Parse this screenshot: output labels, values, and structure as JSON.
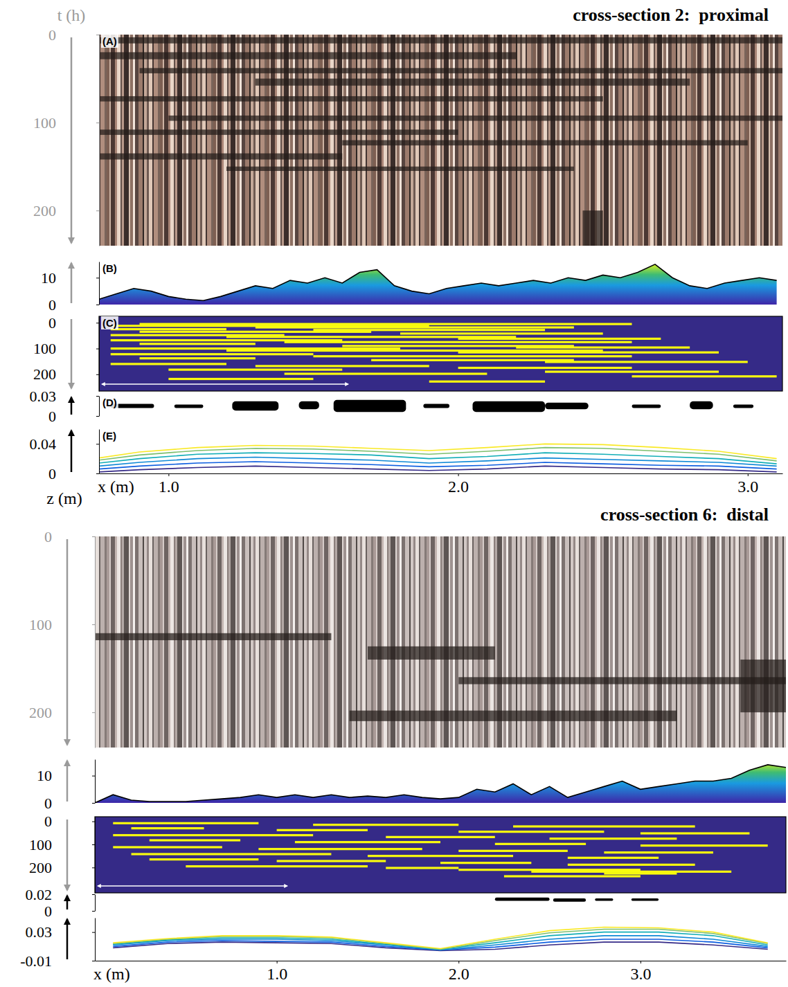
{
  "chart_data": [
    {
      "title": "cross-section 2:  proximal",
      "x_label": "x (m)",
      "xlim": [
        0.76,
        3.12
      ],
      "xticks": [
        {
          "value": 1,
          "label": "1.0"
        },
        {
          "value": 2,
          "label": "2.0"
        },
        {
          "value": 3,
          "label": "3.0"
        }
      ],
      "panels": [
        {
          "type": "image",
          "letter": "(A)",
          "y_label": "t (h)",
          "ylim": [
            0,
            240
          ],
          "yticks": [
            0,
            100,
            200
          ],
          "bands": [
            [
              3,
              10,
              0.76,
              3.12
            ],
            [
              20,
              28,
              0.76,
              2.2
            ],
            [
              38,
              44,
              0.9,
              3.12
            ],
            [
              50,
              58,
              1.3,
              2.8
            ],
            [
              70,
              76,
              0.76,
              2.5
            ],
            [
              92,
              98,
              1.0,
              3.12
            ],
            [
              108,
              114,
              0.76,
              2.0
            ],
            [
              120,
              126,
              1.6,
              3.0
            ],
            [
              135,
              142,
              0.76,
              1.6
            ],
            [
              150,
              155,
              1.2,
              2.4
            ],
            [
              200,
              240,
              2.43,
              2.5
            ]
          ]
        },
        {
          "type": "area",
          "letter": "(B)",
          "ylim": [
            0,
            16
          ],
          "yticks": [
            0,
            10
          ],
          "x": [
            0.76,
            0.82,
            0.88,
            0.94,
            1.0,
            1.06,
            1.12,
            1.18,
            1.24,
            1.3,
            1.36,
            1.42,
            1.48,
            1.54,
            1.6,
            1.66,
            1.72,
            1.78,
            1.84,
            1.9,
            1.96,
            2.02,
            2.08,
            2.14,
            2.2,
            2.26,
            2.32,
            2.38,
            2.44,
            2.5,
            2.56,
            2.62,
            2.68,
            2.74,
            2.8,
            2.86,
            2.92,
            2.98,
            3.04,
            3.1
          ],
          "values": [
            2,
            4,
            6,
            5,
            3,
            2,
            1.5,
            3,
            5,
            7,
            6,
            9,
            8,
            10,
            8,
            12,
            13,
            7,
            5,
            4,
            6,
            7,
            8,
            7,
            8,
            9,
            8,
            10,
            9,
            11,
            10,
            12,
            15,
            10,
            7,
            6,
            8,
            9,
            10,
            9
          ]
        },
        {
          "type": "raster",
          "letter": "(C)",
          "ylim": [
            -25,
            265
          ],
          "yticks": [
            0,
            100,
            200
          ],
          "segments": [
            [
              5,
              0.9,
              2.6
            ],
            [
              12,
              0.8,
              1.9
            ],
            [
              18,
              1.3,
              2.4
            ],
            [
              25,
              0.8,
              1.2
            ],
            [
              28,
              1.5,
              2.3
            ],
            [
              35,
              0.9,
              1.7
            ],
            [
              42,
              1.8,
              2.5
            ],
            [
              48,
              0.8,
              1.4
            ],
            [
              55,
              1.2,
              2.2
            ],
            [
              62,
              2.0,
              2.7
            ],
            [
              68,
              0.8,
              1.6
            ],
            [
              75,
              1.4,
              2.6
            ],
            [
              82,
              0.9,
              1.3
            ],
            [
              90,
              1.6,
              2.4
            ],
            [
              96,
              2.2,
              2.8
            ],
            [
              100,
              0.8,
              1.8
            ],
            [
              108,
              1.2,
              2.5
            ],
            [
              115,
              2.0,
              2.9
            ],
            [
              122,
              0.8,
              1.5
            ],
            [
              130,
              1.5,
              2.6
            ],
            [
              138,
              0.9,
              1.3
            ],
            [
              145,
              1.7,
              2.4
            ],
            [
              152,
              2.3,
              3.0
            ],
            [
              160,
              0.8,
              1.2
            ],
            [
              168,
              1.3,
              1.9
            ],
            [
              175,
              2.0,
              2.6
            ],
            [
              182,
              1.0,
              1.6
            ],
            [
              190,
              2.3,
              2.9
            ],
            [
              198,
              1.4,
              2.1
            ],
            [
              208,
              2.6,
              3.1
            ],
            [
              218,
              1.0,
              1.5
            ],
            [
              228,
              1.9,
              2.3
            ]
          ]
        },
        {
          "type": "blobs",
          "letter": "(D)",
          "ylim": [
            0,
            0.03
          ],
          "yticks": [
            0,
            0.03
          ],
          "blobs": [
            [
              0.8,
              0.95,
              0.012,
              0.018
            ],
            [
              1.02,
              1.12,
              0.012,
              0.017
            ],
            [
              1.22,
              1.38,
              0.008,
              0.022
            ],
            [
              1.45,
              1.52,
              0.01,
              0.022
            ],
            [
              1.57,
              1.82,
              0.006,
              0.024
            ],
            [
              1.88,
              1.97,
              0.012,
              0.018
            ],
            [
              2.05,
              2.3,
              0.006,
              0.022
            ],
            [
              2.3,
              2.45,
              0.01,
              0.02
            ],
            [
              2.6,
              2.7,
              0.012,
              0.017
            ],
            [
              2.8,
              2.88,
              0.01,
              0.022
            ],
            [
              2.95,
              3.02,
              0.012,
              0.017
            ]
          ]
        },
        {
          "type": "line",
          "letter": "(E)",
          "y_label": "z (m)",
          "ylim": [
            0,
            0.06
          ],
          "yticks": [
            0,
            0.04
          ],
          "x": [
            0.76,
            0.9,
            1.1,
            1.3,
            1.5,
            1.7,
            1.9,
            2.1,
            2.3,
            2.5,
            2.7,
            2.9,
            3.1
          ],
          "series": [
            {
              "color": "#352a87",
              "values": [
                0.002,
                0.005,
                0.008,
                0.01,
                0.008,
                0.006,
                0.004,
                0.006,
                0.01,
                0.008,
                0.006,
                0.005,
                0.002
              ]
            },
            {
              "color": "#0d5ee0",
              "values": [
                0.006,
                0.01,
                0.014,
                0.016,
                0.014,
                0.012,
                0.009,
                0.011,
                0.015,
                0.013,
                0.011,
                0.01,
                0.006
              ]
            },
            {
              "color": "#0f89d6",
              "values": [
                0.01,
                0.015,
                0.02,
                0.022,
                0.02,
                0.018,
                0.014,
                0.017,
                0.021,
                0.019,
                0.017,
                0.015,
                0.01
              ]
            },
            {
              "color": "#13aeb7",
              "values": [
                0.014,
                0.02,
                0.026,
                0.028,
                0.027,
                0.025,
                0.02,
                0.023,
                0.028,
                0.026,
                0.023,
                0.02,
                0.013
              ]
            },
            {
              "color": "#7dbf6e",
              "values": [
                0.018,
                0.025,
                0.031,
                0.034,
                0.033,
                0.03,
                0.026,
                0.03,
                0.035,
                0.034,
                0.03,
                0.026,
                0.017
              ]
            },
            {
              "color": "#f9e926",
              "values": [
                0.021,
                0.029,
                0.035,
                0.038,
                0.037,
                0.034,
                0.031,
                0.035,
                0.04,
                0.039,
                0.035,
                0.03,
                0.02
              ]
            }
          ]
        }
      ]
    },
    {
      "title": "cross-section 6:  distal",
      "x_label": "x (m)",
      "xlim": [
        0,
        3.8
      ],
      "xticks": [
        {
          "value": 1,
          "label": "1.0"
        },
        {
          "value": 2,
          "label": "2.0"
        },
        {
          "value": 3,
          "label": "3.0"
        }
      ],
      "panels": [
        {
          "type": "image",
          "ylim": [
            0,
            240
          ],
          "yticks": [
            0,
            100,
            200
          ],
          "bands": [
            [
              110,
              118,
              0.0,
              1.3
            ],
            [
              125,
              140,
              1.5,
              2.2
            ],
            [
              160,
              168,
              2.0,
              3.8
            ],
            [
              198,
              210,
              1.4,
              3.2
            ],
            [
              140,
              200,
              3.55,
              3.8
            ]
          ]
        },
        {
          "type": "area",
          "ylim": [
            0,
            16
          ],
          "yticks": [
            0,
            10
          ],
          "x": [
            0.0,
            0.1,
            0.2,
            0.3,
            0.4,
            0.5,
            0.6,
            0.7,
            0.8,
            0.9,
            1.0,
            1.1,
            1.2,
            1.3,
            1.4,
            1.5,
            1.6,
            1.7,
            1.8,
            1.9,
            2.0,
            2.1,
            2.2,
            2.3,
            2.4,
            2.5,
            2.6,
            2.7,
            2.8,
            2.9,
            3.0,
            3.1,
            3.2,
            3.3,
            3.4,
            3.5,
            3.6,
            3.7,
            3.8
          ],
          "values": [
            0,
            3,
            1,
            0.5,
            0.5,
            0.5,
            1,
            1.5,
            2,
            3,
            2,
            3,
            2,
            3,
            2,
            2.5,
            2,
            3,
            2,
            1.5,
            2,
            5,
            4,
            7,
            3,
            6,
            2,
            4,
            6,
            8,
            5,
            6,
            7,
            8,
            8,
            9,
            12,
            14,
            13
          ]
        },
        {
          "type": "raster",
          "ylim": [
            -20,
            310
          ],
          "yticks": [
            0,
            100,
            200
          ],
          "segments": [
            [
              8,
              0.1,
              0.9
            ],
            [
              15,
              1.2,
              2.0
            ],
            [
              22,
              2.3,
              3.3
            ],
            [
              30,
              0.2,
              0.6
            ],
            [
              38,
              1.0,
              1.5
            ],
            [
              45,
              2.0,
              2.8
            ],
            [
              52,
              3.0,
              3.6
            ],
            [
              60,
              0.1,
              1.2
            ],
            [
              68,
              1.6,
              2.2
            ],
            [
              75,
              2.5,
              3.2
            ],
            [
              82,
              0.3,
              0.8
            ],
            [
              90,
              1.1,
              1.9
            ],
            [
              98,
              2.2,
              2.7
            ],
            [
              105,
              3.0,
              3.7
            ],
            [
              112,
              0.1,
              0.7
            ],
            [
              120,
              0.9,
              1.8
            ],
            [
              128,
              2.0,
              2.6
            ],
            [
              135,
              2.8,
              3.4
            ],
            [
              142,
              0.2,
              1.3
            ],
            [
              150,
              1.5,
              2.3
            ],
            [
              158,
              2.6,
              3.1
            ],
            [
              165,
              0.3,
              0.9
            ],
            [
              172,
              1.0,
              1.6
            ],
            [
              180,
              1.9,
              2.4
            ],
            [
              188,
              2.6,
              3.3
            ],
            [
              195,
              0.5,
              1.5
            ],
            [
              202,
              1.6,
              2.0
            ],
            [
              210,
              2.0,
              3.0
            ],
            [
              218,
              2.4,
              3.5
            ],
            [
              226,
              2.8,
              3.2
            ],
            [
              238,
              2.25,
              3.0
            ]
          ]
        },
        {
          "type": "blobs",
          "ylim": [
            0,
            0.02
          ],
          "yticks": [
            0,
            0.02
          ],
          "blobs": [
            [
              2.2,
              2.5,
              0.012,
              0.016
            ],
            [
              2.52,
              2.7,
              0.011,
              0.015
            ],
            [
              2.75,
              2.85,
              0.012,
              0.015
            ],
            [
              2.95,
              3.1,
              0.012,
              0.015
            ]
          ]
        },
        {
          "type": "line",
          "ylim": [
            -0.01,
            0.05
          ],
          "yticks": [
            -0.01,
            0.03
          ],
          "x": [
            0.1,
            0.4,
            0.7,
            1.0,
            1.3,
            1.6,
            1.9,
            2.2,
            2.5,
            2.8,
            3.1,
            3.4,
            3.7
          ],
          "series": [
            {
              "color": "#352a87",
              "values": [
                0.008,
                0.014,
                0.016,
                0.015,
                0.014,
                0.008,
                0.004,
                0.006,
                0.012,
                0.016,
                0.016,
                0.012,
                0.006
              ]
            },
            {
              "color": "#0d5ee0",
              "values": [
                0.01,
                0.016,
                0.018,
                0.017,
                0.016,
                0.01,
                0.005,
                0.009,
                0.016,
                0.02,
                0.02,
                0.016,
                0.008
              ]
            },
            {
              "color": "#0f89d6",
              "values": [
                0.012,
                0.018,
                0.02,
                0.02,
                0.018,
                0.012,
                0.005,
                0.012,
                0.02,
                0.025,
                0.025,
                0.02,
                0.01
              ]
            },
            {
              "color": "#13aeb7",
              "values": [
                0.013,
                0.019,
                0.022,
                0.022,
                0.02,
                0.013,
                0.006,
                0.015,
                0.025,
                0.03,
                0.03,
                0.025,
                0.012
              ]
            },
            {
              "color": "#7dbf6e",
              "values": [
                0.014,
                0.02,
                0.024,
                0.024,
                0.022,
                0.014,
                0.006,
                0.018,
                0.029,
                0.034,
                0.034,
                0.028,
                0.014
              ]
            },
            {
              "color": "#f9e926",
              "values": [
                0.015,
                0.021,
                0.025,
                0.025,
                0.023,
                0.015,
                0.007,
                0.02,
                0.032,
                0.037,
                0.036,
                0.03,
                0.015
              ]
            }
          ]
        }
      ]
    }
  ]
}
